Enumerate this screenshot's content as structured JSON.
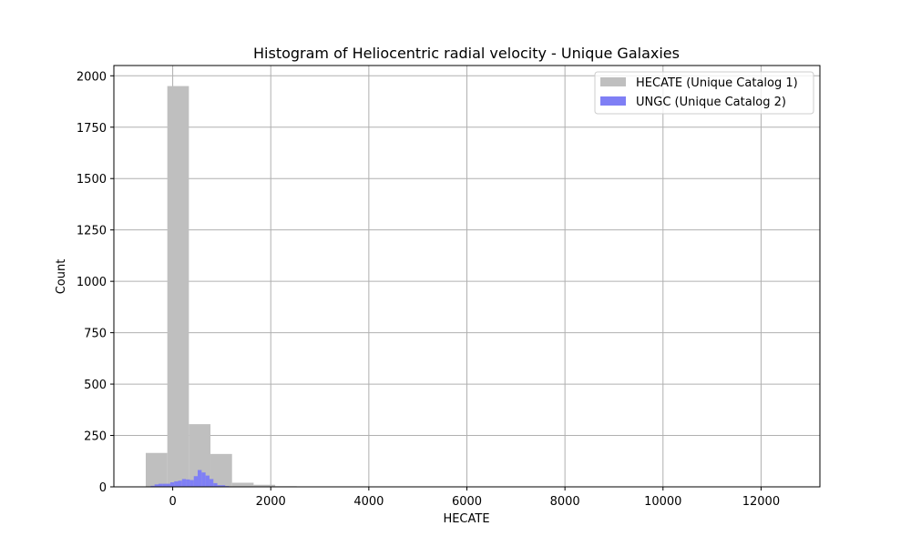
{
  "chart_data": {
    "type": "bar",
    "title": "Histogram of Heliocentric radial velocity - Unique Galaxies",
    "xlabel": "HECATE",
    "ylabel": "Count",
    "xlim": [
      -1200,
      13200
    ],
    "ylim": [
      0,
      2050
    ],
    "xticks": [
      0,
      2000,
      4000,
      6000,
      8000,
      10000,
      12000
    ],
    "yticks": [
      0,
      250,
      500,
      750,
      1000,
      1250,
      1500,
      1750,
      2000
    ],
    "grid": true,
    "legend_position": "top-right",
    "series": [
      {
        "name": "HECATE (Unique Catalog 1)",
        "color": "#bfbfbf",
        "bin_width": 440,
        "bins": [
          {
            "x0": -550,
            "value": 165
          },
          {
            "x0": -110,
            "value": 1950
          },
          {
            "x0": 330,
            "value": 305
          },
          {
            "x0": 770,
            "value": 160
          },
          {
            "x0": 1210,
            "value": 20
          },
          {
            "x0": 1650,
            "value": 10
          },
          {
            "x0": 2090,
            "value": 3
          },
          {
            "x0": 2530,
            "value": 1
          },
          {
            "x0": 2970,
            "value": 1
          },
          {
            "x0": 3410,
            "value": 1
          }
        ]
      },
      {
        "name": "UNGC (Unique Catalog 2)",
        "color": "#7f7ff5",
        "bin_width": 80,
        "bins": [
          {
            "x0": -450,
            "value": 5
          },
          {
            "x0": -370,
            "value": 12
          },
          {
            "x0": -290,
            "value": 15
          },
          {
            "x0": -210,
            "value": 15
          },
          {
            "x0": -130,
            "value": 15
          },
          {
            "x0": -50,
            "value": 22
          },
          {
            "x0": 30,
            "value": 27
          },
          {
            "x0": 110,
            "value": 30
          },
          {
            "x0": 190,
            "value": 38
          },
          {
            "x0": 270,
            "value": 36
          },
          {
            "x0": 350,
            "value": 33
          },
          {
            "x0": 430,
            "value": 52
          },
          {
            "x0": 510,
            "value": 82
          },
          {
            "x0": 590,
            "value": 70
          },
          {
            "x0": 670,
            "value": 55
          },
          {
            "x0": 750,
            "value": 38
          },
          {
            "x0": 830,
            "value": 18
          },
          {
            "x0": 910,
            "value": 8
          },
          {
            "x0": 990,
            "value": 8
          },
          {
            "x0": 1070,
            "value": 4
          },
          {
            "x0": 1150,
            "value": 2
          },
          {
            "x0": 12390,
            "value": 2
          },
          {
            "x0": 12470,
            "value": 1
          }
        ]
      }
    ]
  }
}
